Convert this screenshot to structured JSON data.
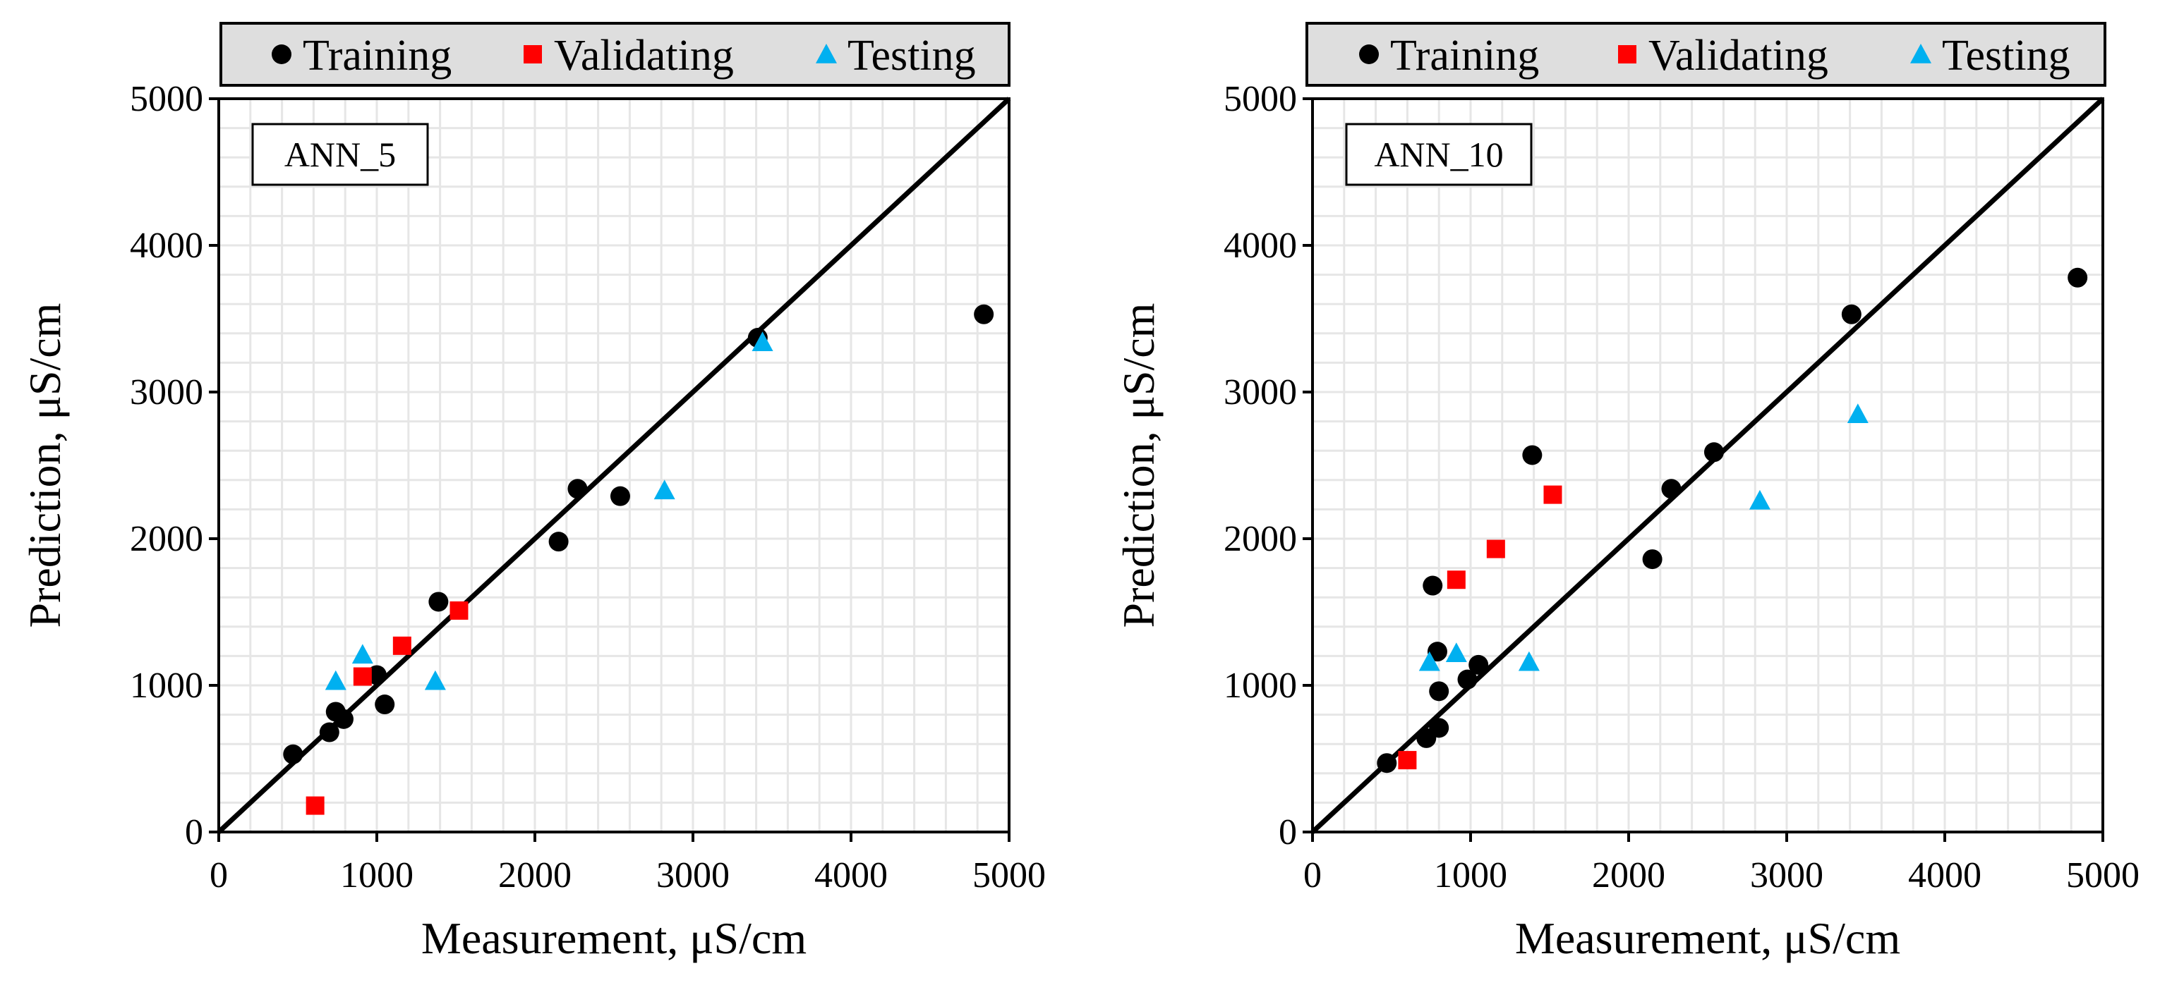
{
  "chart_data": [
    {
      "type": "scatter",
      "title": "ANN_5",
      "xlabel": "Measurement, μS/cm",
      "ylabel": "Prediction, μS/cm",
      "xlim": [
        0,
        5000
      ],
      "ylim": [
        0,
        5000
      ],
      "x_ticks": [
        "0",
        "1000",
        "2000",
        "3000",
        "4000",
        "5000"
      ],
      "y_ticks": [
        "0",
        "1000",
        "2000",
        "3000",
        "4000",
        "5000"
      ],
      "grid": true,
      "reference_line": "y = x",
      "legend": {
        "position": "top",
        "entries": [
          "Training",
          "Validating",
          "Testing"
        ]
      },
      "series": [
        {
          "name": "Training",
          "marker": "circle",
          "color": "#000000",
          "points": [
            [
              470,
              530
            ],
            [
              700,
              680
            ],
            [
              740,
              820
            ],
            [
              790,
              770
            ],
            [
              1000,
              1070
            ],
            [
              1050,
              870
            ],
            [
              1390,
              1570
            ],
            [
              2150,
              1980
            ],
            [
              2270,
              2340
            ],
            [
              2540,
              2290
            ],
            [
              3410,
              3370
            ],
            [
              4840,
              3530
            ]
          ]
        },
        {
          "name": "Validating",
          "marker": "square",
          "color": "#ff0000",
          "points": [
            [
              610,
              180
            ],
            [
              910,
              1060
            ],
            [
              1160,
              1270
            ],
            [
              1520,
              1510
            ]
          ]
        },
        {
          "name": "Testing",
          "marker": "triangle",
          "color": "#00b0f0",
          "points": [
            [
              740,
              1030
            ],
            [
              910,
              1210
            ],
            [
              1370,
              1030
            ],
            [
              2820,
              2330
            ],
            [
              3440,
              3340
            ]
          ]
        }
      ]
    },
    {
      "type": "scatter",
      "title": "ANN_10",
      "xlabel": "Measurement, μS/cm",
      "ylabel": "Prediction, μS/cm",
      "xlim": [
        0,
        5000
      ],
      "ylim": [
        0,
        5000
      ],
      "x_ticks": [
        "0",
        "1000",
        "2000",
        "3000",
        "4000",
        "5000"
      ],
      "y_ticks": [
        "0",
        "1000",
        "2000",
        "3000",
        "4000",
        "5000"
      ],
      "grid": true,
      "reference_line": "y = x",
      "legend": {
        "position": "top",
        "entries": [
          "Training",
          "Validating",
          "Testing"
        ]
      },
      "series": [
        {
          "name": "Training",
          "marker": "circle",
          "color": "#000000",
          "points": [
            [
              470,
              470
            ],
            [
              720,
              640
            ],
            [
              760,
              1680
            ],
            [
              790,
              1230
            ],
            [
              800,
              960
            ],
            [
              800,
              710
            ],
            [
              980,
              1040
            ],
            [
              1050,
              1140
            ],
            [
              1390,
              2570
            ],
            [
              2150,
              1860
            ],
            [
              2270,
              2340
            ],
            [
              2540,
              2590
            ],
            [
              3410,
              3530
            ],
            [
              4840,
              3780
            ]
          ]
        },
        {
          "name": "Validating",
          "marker": "square",
          "color": "#ff0000",
          "points": [
            [
              600,
              490
            ],
            [
              910,
              1720
            ],
            [
              1160,
              1930
            ],
            [
              1520,
              2300
            ]
          ]
        },
        {
          "name": "Testing",
          "marker": "triangle",
          "color": "#00b0f0",
          "points": [
            [
              740,
              1160
            ],
            [
              910,
              1220
            ],
            [
              1370,
              1160
            ],
            [
              2830,
              2260
            ],
            [
              3450,
              2850
            ]
          ]
        }
      ]
    }
  ]
}
